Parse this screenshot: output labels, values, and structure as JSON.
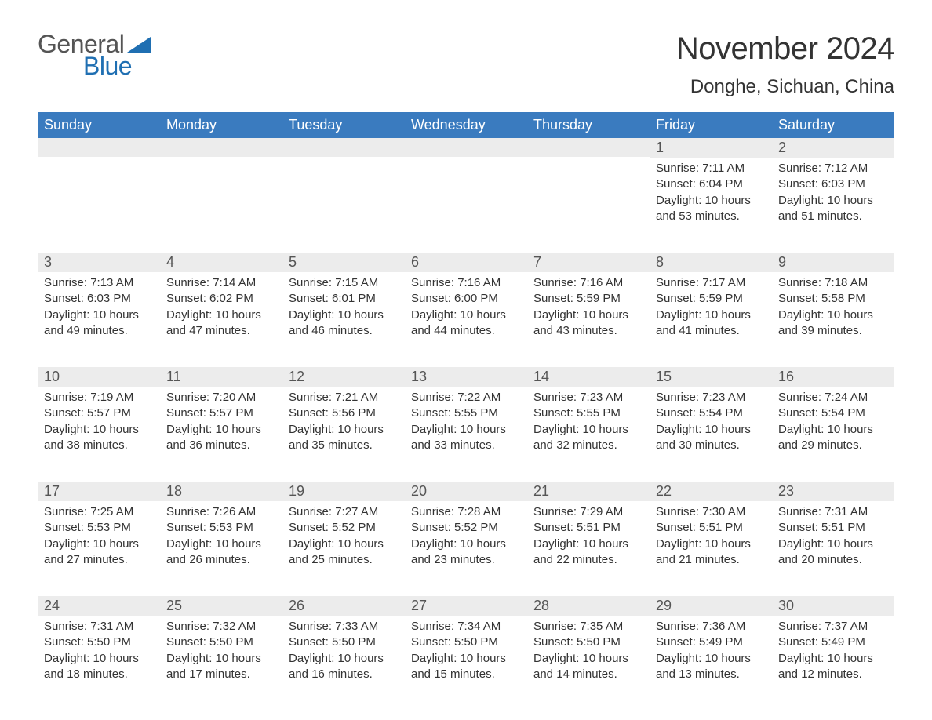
{
  "brand": {
    "part1": "General",
    "part2": "Blue",
    "triangle_color": "#1f6fb2"
  },
  "title": "November 2024",
  "location": "Donghe, Sichuan, China",
  "colors": {
    "header_bg": "#3a7bbf",
    "header_text": "#ffffff",
    "daynum_bg": "#ececec",
    "rule": "#3a7bbf",
    "body_text": "#333333"
  },
  "weekdays": [
    "Sunday",
    "Monday",
    "Tuesday",
    "Wednesday",
    "Thursday",
    "Friday",
    "Saturday"
  ],
  "weeks": [
    [
      null,
      null,
      null,
      null,
      null,
      {
        "n": "1",
        "sunrise": "7:11 AM",
        "sunset": "6:04 PM",
        "daylight": "10 hours and 53 minutes."
      },
      {
        "n": "2",
        "sunrise": "7:12 AM",
        "sunset": "6:03 PM",
        "daylight": "10 hours and 51 minutes."
      }
    ],
    [
      {
        "n": "3",
        "sunrise": "7:13 AM",
        "sunset": "6:03 PM",
        "daylight": "10 hours and 49 minutes."
      },
      {
        "n": "4",
        "sunrise": "7:14 AM",
        "sunset": "6:02 PM",
        "daylight": "10 hours and 47 minutes."
      },
      {
        "n": "5",
        "sunrise": "7:15 AM",
        "sunset": "6:01 PM",
        "daylight": "10 hours and 46 minutes."
      },
      {
        "n": "6",
        "sunrise": "7:16 AM",
        "sunset": "6:00 PM",
        "daylight": "10 hours and 44 minutes."
      },
      {
        "n": "7",
        "sunrise": "7:16 AM",
        "sunset": "5:59 PM",
        "daylight": "10 hours and 43 minutes."
      },
      {
        "n": "8",
        "sunrise": "7:17 AM",
        "sunset": "5:59 PM",
        "daylight": "10 hours and 41 minutes."
      },
      {
        "n": "9",
        "sunrise": "7:18 AM",
        "sunset": "5:58 PM",
        "daylight": "10 hours and 39 minutes."
      }
    ],
    [
      {
        "n": "10",
        "sunrise": "7:19 AM",
        "sunset": "5:57 PM",
        "daylight": "10 hours and 38 minutes."
      },
      {
        "n": "11",
        "sunrise": "7:20 AM",
        "sunset": "5:57 PM",
        "daylight": "10 hours and 36 minutes."
      },
      {
        "n": "12",
        "sunrise": "7:21 AM",
        "sunset": "5:56 PM",
        "daylight": "10 hours and 35 minutes."
      },
      {
        "n": "13",
        "sunrise": "7:22 AM",
        "sunset": "5:55 PM",
        "daylight": "10 hours and 33 minutes."
      },
      {
        "n": "14",
        "sunrise": "7:23 AM",
        "sunset": "5:55 PM",
        "daylight": "10 hours and 32 minutes."
      },
      {
        "n": "15",
        "sunrise": "7:23 AM",
        "sunset": "5:54 PM",
        "daylight": "10 hours and 30 minutes."
      },
      {
        "n": "16",
        "sunrise": "7:24 AM",
        "sunset": "5:54 PM",
        "daylight": "10 hours and 29 minutes."
      }
    ],
    [
      {
        "n": "17",
        "sunrise": "7:25 AM",
        "sunset": "5:53 PM",
        "daylight": "10 hours and 27 minutes."
      },
      {
        "n": "18",
        "sunrise": "7:26 AM",
        "sunset": "5:53 PM",
        "daylight": "10 hours and 26 minutes."
      },
      {
        "n": "19",
        "sunrise": "7:27 AM",
        "sunset": "5:52 PM",
        "daylight": "10 hours and 25 minutes."
      },
      {
        "n": "20",
        "sunrise": "7:28 AM",
        "sunset": "5:52 PM",
        "daylight": "10 hours and 23 minutes."
      },
      {
        "n": "21",
        "sunrise": "7:29 AM",
        "sunset": "5:51 PM",
        "daylight": "10 hours and 22 minutes."
      },
      {
        "n": "22",
        "sunrise": "7:30 AM",
        "sunset": "5:51 PM",
        "daylight": "10 hours and 21 minutes."
      },
      {
        "n": "23",
        "sunrise": "7:31 AM",
        "sunset": "5:51 PM",
        "daylight": "10 hours and 20 minutes."
      }
    ],
    [
      {
        "n": "24",
        "sunrise": "7:31 AM",
        "sunset": "5:50 PM",
        "daylight": "10 hours and 18 minutes."
      },
      {
        "n": "25",
        "sunrise": "7:32 AM",
        "sunset": "5:50 PM",
        "daylight": "10 hours and 17 minutes."
      },
      {
        "n": "26",
        "sunrise": "7:33 AM",
        "sunset": "5:50 PM",
        "daylight": "10 hours and 16 minutes."
      },
      {
        "n": "27",
        "sunrise": "7:34 AM",
        "sunset": "5:50 PM",
        "daylight": "10 hours and 15 minutes."
      },
      {
        "n": "28",
        "sunrise": "7:35 AM",
        "sunset": "5:50 PM",
        "daylight": "10 hours and 14 minutes."
      },
      {
        "n": "29",
        "sunrise": "7:36 AM",
        "sunset": "5:49 PM",
        "daylight": "10 hours and 13 minutes."
      },
      {
        "n": "30",
        "sunrise": "7:37 AM",
        "sunset": "5:49 PM",
        "daylight": "10 hours and 12 minutes."
      }
    ]
  ],
  "labels": {
    "sunrise": "Sunrise: ",
    "sunset": "Sunset: ",
    "daylight": "Daylight: "
  }
}
